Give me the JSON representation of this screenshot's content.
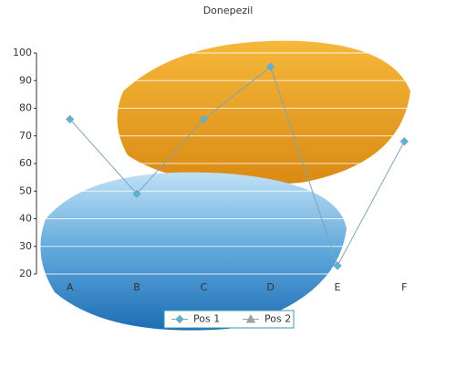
{
  "chart_data": {
    "type": "line",
    "title": "Donepezil",
    "categories": [
      "A",
      "B",
      "C",
      "D",
      "E",
      "F"
    ],
    "series": [
      {
        "name": "Pos 1",
        "color": "#4fb8d8",
        "line_color": "#7fa3b8",
        "marker": "diamond",
        "values": [
          76,
          49,
          76,
          95,
          23,
          68
        ]
      },
      {
        "name": "Pos 2",
        "color": "#a0a0a0",
        "marker": "triangle",
        "values": [
          null,
          null,
          null,
          null,
          null,
          null
        ]
      }
    ],
    "ylim": [
      20,
      100
    ],
    "yticks": [
      20,
      30,
      40,
      50,
      60,
      70,
      80,
      90,
      100
    ],
    "grid": true
  }
}
